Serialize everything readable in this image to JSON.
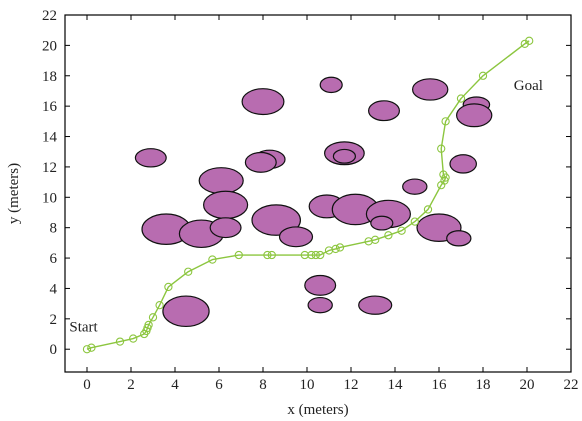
{
  "chart_data": {
    "type": "scatter",
    "title": "",
    "xlabel": "x (meters)",
    "ylabel": "y (meters)",
    "xlim": [
      -1,
      22
    ],
    "ylim": [
      -1.5,
      22
    ],
    "xticks": [
      0,
      2,
      4,
      6,
      8,
      10,
      12,
      14,
      16,
      18,
      20,
      22
    ],
    "yticks": [
      0,
      2,
      4,
      6,
      8,
      10,
      12,
      14,
      16,
      18,
      20,
      22
    ],
    "grid": false,
    "annotations": [
      {
        "text": "Start",
        "x": -0.8,
        "y": 1.5
      },
      {
        "text": "Goal",
        "x": 19.4,
        "y": 17.4
      }
    ],
    "obstacle_color": "#b86cb0",
    "path_color": "#8cc63f",
    "obstacles": [
      {
        "x": 8.0,
        "y": 16.3,
        "rx": 0.95,
        "ry": 0.85
      },
      {
        "x": 11.1,
        "y": 17.4,
        "rx": 0.5,
        "ry": 0.5
      },
      {
        "x": 15.6,
        "y": 17.1,
        "rx": 0.8,
        "ry": 0.7
      },
      {
        "x": 13.5,
        "y": 15.7,
        "rx": 0.7,
        "ry": 0.65
      },
      {
        "x": 17.7,
        "y": 16.1,
        "rx": 0.6,
        "ry": 0.5
      },
      {
        "x": 17.6,
        "y": 15.4,
        "rx": 0.8,
        "ry": 0.75
      },
      {
        "x": 2.9,
        "y": 12.6,
        "rx": 0.7,
        "ry": 0.6
      },
      {
        "x": 8.3,
        "y": 12.5,
        "rx": 0.7,
        "ry": 0.6
      },
      {
        "x": 7.9,
        "y": 12.3,
        "rx": 0.7,
        "ry": 0.65
      },
      {
        "x": 11.7,
        "y": 12.9,
        "rx": 0.9,
        "ry": 0.75
      },
      {
        "x": 11.7,
        "y": 12.7,
        "rx": 0.5,
        "ry": 0.45
      },
      {
        "x": 17.1,
        "y": 12.2,
        "rx": 0.6,
        "ry": 0.6
      },
      {
        "x": 6.1,
        "y": 11.1,
        "rx": 1.0,
        "ry": 0.85
      },
      {
        "x": 14.9,
        "y": 10.7,
        "rx": 0.55,
        "ry": 0.5
      },
      {
        "x": 6.3,
        "y": 9.5,
        "rx": 1.0,
        "ry": 0.9
      },
      {
        "x": 10.9,
        "y": 9.4,
        "rx": 0.8,
        "ry": 0.75
      },
      {
        "x": 12.2,
        "y": 9.2,
        "rx": 1.05,
        "ry": 1.0
      },
      {
        "x": 13.7,
        "y": 8.9,
        "rx": 1.0,
        "ry": 0.9
      },
      {
        "x": 13.4,
        "y": 8.3,
        "rx": 0.5,
        "ry": 0.45
      },
      {
        "x": 8.6,
        "y": 8.5,
        "rx": 1.1,
        "ry": 1.0
      },
      {
        "x": 3.6,
        "y": 7.9,
        "rx": 1.1,
        "ry": 1.0
      },
      {
        "x": 5.2,
        "y": 7.6,
        "rx": 1.0,
        "ry": 0.9
      },
      {
        "x": 6.3,
        "y": 8.0,
        "rx": 0.7,
        "ry": 0.65
      },
      {
        "x": 9.5,
        "y": 7.4,
        "rx": 0.75,
        "ry": 0.65
      },
      {
        "x": 16.0,
        "y": 8.0,
        "rx": 1.0,
        "ry": 0.9
      },
      {
        "x": 16.9,
        "y": 7.3,
        "rx": 0.55,
        "ry": 0.5
      },
      {
        "x": 10.6,
        "y": 4.2,
        "rx": 0.7,
        "ry": 0.65
      },
      {
        "x": 4.5,
        "y": 2.5,
        "rx": 1.05,
        "ry": 1.0
      },
      {
        "x": 10.6,
        "y": 2.9,
        "rx": 0.55,
        "ry": 0.5
      },
      {
        "x": 13.1,
        "y": 2.9,
        "rx": 0.75,
        "ry": 0.6
      }
    ],
    "path": [
      {
        "x": 0.0,
        "y": 0.0
      },
      {
        "x": 0.2,
        "y": 0.1
      },
      {
        "x": 1.5,
        "y": 0.5
      },
      {
        "x": 2.1,
        "y": 0.7
      },
      {
        "x": 2.6,
        "y": 1.0
      },
      {
        "x": 2.7,
        "y": 1.2
      },
      {
        "x": 2.75,
        "y": 1.4
      },
      {
        "x": 2.8,
        "y": 1.6
      },
      {
        "x": 3.0,
        "y": 2.1
      },
      {
        "x": 3.3,
        "y": 2.9
      },
      {
        "x": 3.7,
        "y": 4.1
      },
      {
        "x": 4.6,
        "y": 5.1
      },
      {
        "x": 5.7,
        "y": 5.9
      },
      {
        "x": 6.9,
        "y": 6.2
      },
      {
        "x": 8.2,
        "y": 6.2
      },
      {
        "x": 8.4,
        "y": 6.2
      },
      {
        "x": 9.9,
        "y": 6.2
      },
      {
        "x": 10.2,
        "y": 6.2
      },
      {
        "x": 10.4,
        "y": 6.2
      },
      {
        "x": 10.6,
        "y": 6.2
      },
      {
        "x": 11.0,
        "y": 6.5
      },
      {
        "x": 11.3,
        "y": 6.6
      },
      {
        "x": 11.5,
        "y": 6.7
      },
      {
        "x": 12.8,
        "y": 7.1
      },
      {
        "x": 13.1,
        "y": 7.2
      },
      {
        "x": 13.7,
        "y": 7.5
      },
      {
        "x": 14.3,
        "y": 7.8
      },
      {
        "x": 14.9,
        "y": 8.4
      },
      {
        "x": 15.5,
        "y": 9.2
      },
      {
        "x": 16.1,
        "y": 10.8
      },
      {
        "x": 16.25,
        "y": 11.1
      },
      {
        "x": 16.3,
        "y": 11.3
      },
      {
        "x": 16.2,
        "y": 11.5
      },
      {
        "x": 16.1,
        "y": 13.2
      },
      {
        "x": 16.3,
        "y": 15.0
      },
      {
        "x": 17.0,
        "y": 16.5
      },
      {
        "x": 18.0,
        "y": 18.0
      },
      {
        "x": 19.9,
        "y": 20.1
      },
      {
        "x": 20.1,
        "y": 20.3
      }
    ]
  }
}
